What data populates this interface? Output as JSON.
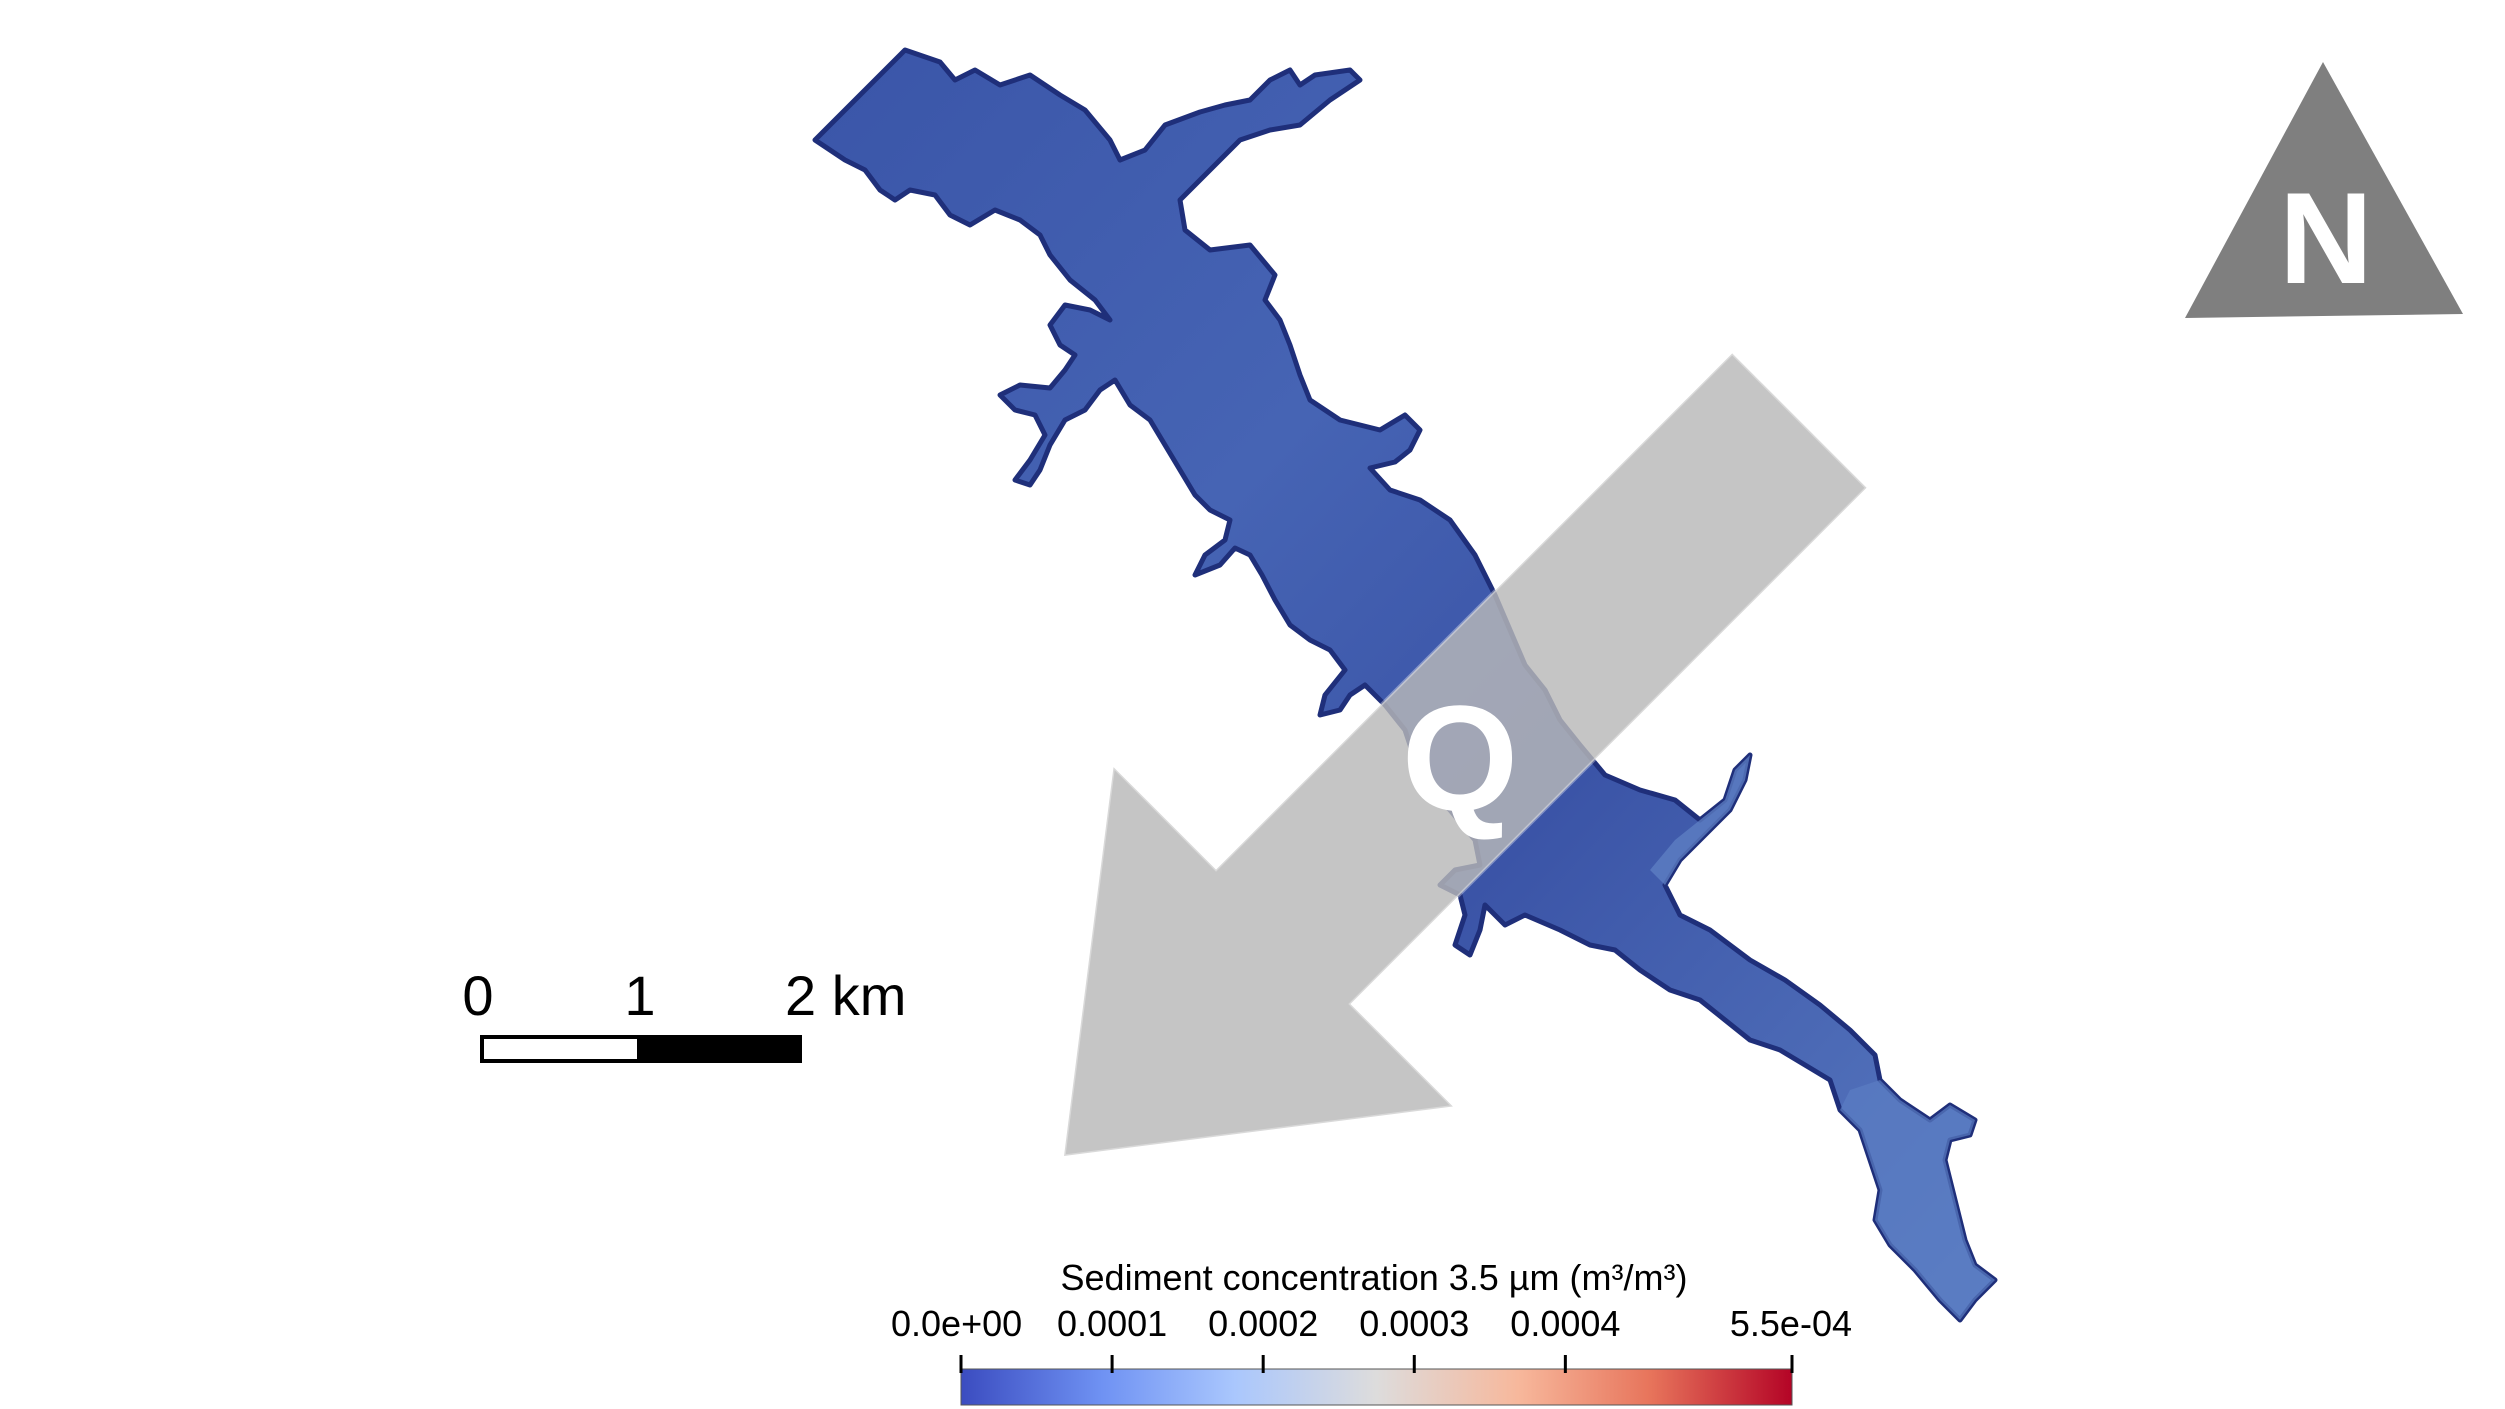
{
  "map": {
    "flow_label": "Q",
    "north_label": "N",
    "colors": {
      "water_main": "#3b57aa",
      "water_edge": "#1f2f7a",
      "water_light": "#5879bf",
      "arrow_fill": "#b8b8b8",
      "north_fill": "#7f7f7f"
    }
  },
  "scale_bar": {
    "labels": [
      "0",
      "1",
      "2 km"
    ]
  },
  "colorbar": {
    "title": "Sediment concentration 3.5 µm (m³/m³)",
    "min_label": "0.0e+00",
    "max_label": "5.5e-04",
    "tick_labels": [
      "0.0e+00",
      "0.0001",
      "0.0002",
      "0.0003",
      "0.0004",
      "5.5e-04"
    ],
    "tick_values": [
      0,
      0.0001,
      0.0002,
      0.0003,
      0.0004,
      0.00055
    ],
    "colormap": [
      "#3b4cc0",
      "#6f92f3",
      "#aac7fd",
      "#dddcdc",
      "#f7b89c",
      "#e7745b",
      "#b40426"
    ]
  }
}
